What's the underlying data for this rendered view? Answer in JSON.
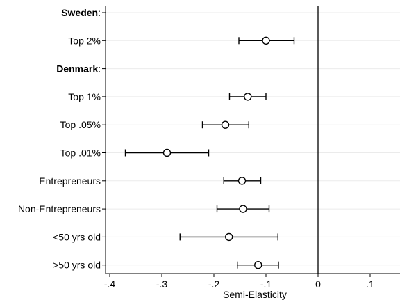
{
  "chart_data": {
    "type": "scatter",
    "subtype": "coefficient-plot-with-95pct-confidence-intervals",
    "xlabel": "Semi-Elasticity",
    "xlim": [
      -0.42,
      0.155
    ],
    "x_ticks": [
      -0.4,
      -0.3,
      -0.2,
      -0.1,
      0,
      0.1
    ],
    "x_tick_labels": [
      "-.4",
      "-.3",
      "-.2",
      "-.1",
      "0",
      ".1"
    ],
    "reference_line_x": 0,
    "grid": "horizontal-light",
    "rows": [
      {
        "name": "Sweden",
        "suffix": ":",
        "header": true
      },
      {
        "name": "Top 2%",
        "estimate": -0.1,
        "ci_low": -0.152,
        "ci_high": -0.046
      },
      {
        "name": "Denmark",
        "suffix": ":",
        "header": true
      },
      {
        "name": "Top 1%",
        "estimate": -0.135,
        "ci_low": -0.17,
        "ci_high": -0.1
      },
      {
        "name": "Top .05%",
        "estimate": -0.178,
        "ci_low": -0.222,
        "ci_high": -0.133
      },
      {
        "name": "Top .01%",
        "estimate": -0.29,
        "ci_low": -0.37,
        "ci_high": -0.21
      },
      {
        "name": "Entrepreneurs",
        "estimate": -0.146,
        "ci_low": -0.181,
        "ci_high": -0.11
      },
      {
        "name": "Non-Entrepreneurs",
        "estimate": -0.144,
        "ci_low": -0.194,
        "ci_high": -0.094
      },
      {
        "name": "<50 yrs old",
        "estimate": -0.171,
        "ci_low": -0.265,
        "ci_high": -0.077
      },
      {
        "name": ">50 yrs old",
        "estimate": -0.115,
        "ci_low": -0.155,
        "ci_high": -0.076
      }
    ]
  }
}
